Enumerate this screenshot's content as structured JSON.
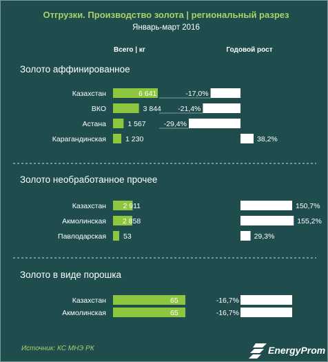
{
  "header": {
    "title": "Отгрузки. Производство золота | региональный разрез",
    "subtitle": "Январь-март 2016",
    "col_total": "Всего | кг",
    "col_growth": "Годовой рост"
  },
  "footer": {
    "source": "Источник: КС МНЭ РК",
    "brand": "EnergyProm"
  },
  "colors": {
    "background": "#1f4d4e",
    "bar_volume": "#8dc63f",
    "bar_growth": "#ffffff",
    "title": "#a9d26a",
    "divider": "#cfdede"
  },
  "chart_data": [
    {
      "type": "bar",
      "title": "Золото аффинированное",
      "categories": [
        "Казахстан",
        "ВКО",
        "Астана",
        "Карагандинская"
      ],
      "series": [
        {
          "name": "Всего | кг",
          "values": [
            6641,
            3844,
            1567,
            1230
          ],
          "labels": [
            "6 641",
            "3 844",
            "1 567",
            "1 230"
          ]
        },
        {
          "name": "Годовой рост",
          "values": [
            -17.0,
            -21.4,
            -29.4,
            38.2
          ],
          "labels": [
            "-17,0%",
            "-21,4%",
            "-29,4%",
            "38,2%"
          ]
        }
      ]
    },
    {
      "type": "bar",
      "title": "Золото необработанное прочее",
      "categories": [
        "Казахстан",
        "Акмолинская",
        "Павлодарская"
      ],
      "series": [
        {
          "name": "Всего | кг",
          "values": [
            2911,
            2858,
            53
          ],
          "labels": [
            "2 911",
            "2 858",
            "53"
          ]
        },
        {
          "name": "Годовой рост",
          "values": [
            150.7,
            155.2,
            29.3
          ],
          "labels": [
            "150,7%",
            "155,2%",
            "29,3%"
          ]
        }
      ]
    },
    {
      "type": "bar",
      "title": "Золото в виде порошка",
      "categories": [
        "Казахстан",
        "Акмолинская"
      ],
      "series": [
        {
          "name": "Всего | кг",
          "values": [
            65,
            65
          ],
          "labels": [
            "65",
            "65"
          ]
        },
        {
          "name": "Годовой рост",
          "values": [
            -16.7,
            -16.7
          ],
          "labels": [
            "-16,7%",
            "-16,7%"
          ]
        }
      ]
    }
  ]
}
